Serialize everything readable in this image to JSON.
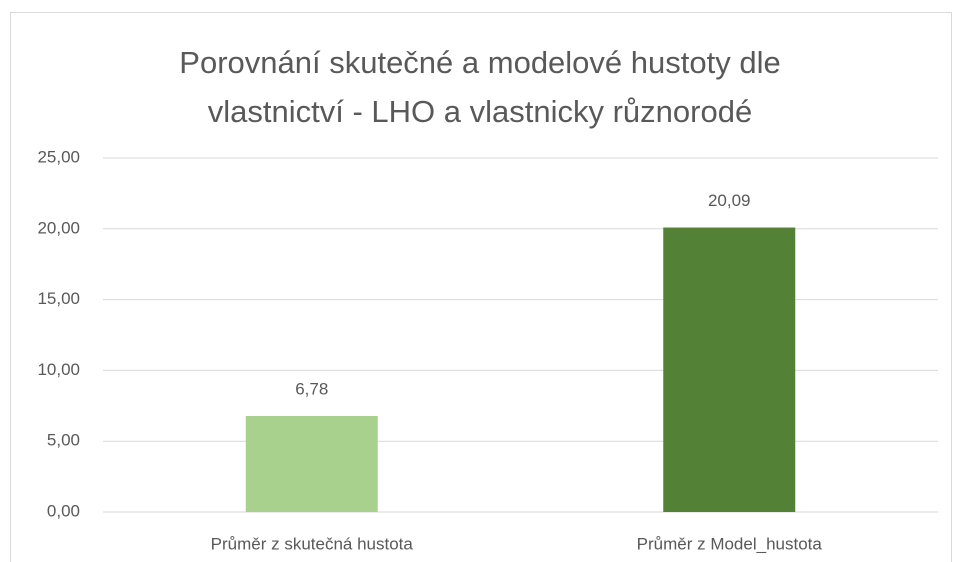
{
  "chart_data": {
    "type": "bar",
    "title": "Porovnání skutečné a modelové hustoty dle vlastnictví - LHO a vlastnicky různorodé",
    "categories": [
      "Průměr z skutečná hustota",
      "Průměr z Model_hustota"
    ],
    "values": [
      6.78,
      20.09
    ],
    "value_labels": [
      "6,78",
      "20,09"
    ],
    "colors": [
      "#a9d18e",
      "#538135"
    ],
    "ylim": [
      0,
      25
    ],
    "yticks": [
      {
        "value": 0,
        "label": "0,00"
      },
      {
        "value": 5,
        "label": "5,00"
      },
      {
        "value": 10,
        "label": "10,00"
      },
      {
        "value": 15,
        "label": "15,00"
      },
      {
        "value": 20,
        "label": "20,00"
      },
      {
        "value": 25,
        "label": "25,00"
      }
    ],
    "grid": true
  }
}
